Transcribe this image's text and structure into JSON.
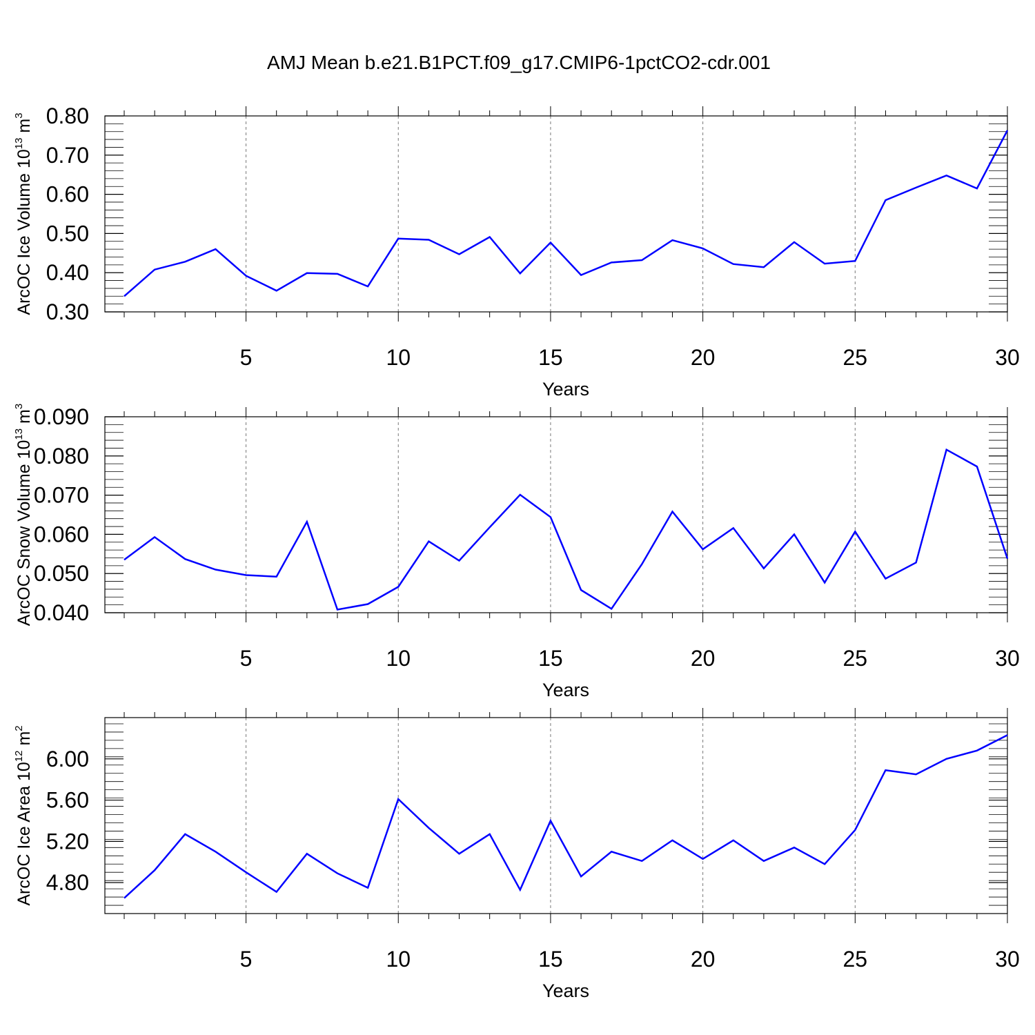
{
  "title": "AMJ Mean b.e21.B1PCT.f09_g17.CMIP6-1pctCO2-cdr.001",
  "chart_data": [
    {
      "type": "line",
      "xlabel": "Years",
      "ylabel": {
        "main": "ArcOC Ice Volume 10",
        "sup": "13",
        "unit": " m",
        "unit_sup": "3"
      },
      "xlim": [
        1,
        30
      ],
      "ylim": [
        0.3,
        0.8
      ],
      "xticks": [
        5,
        10,
        15,
        20,
        25,
        30
      ],
      "yticks": [
        0.3,
        0.4,
        0.5,
        0.6,
        0.7,
        0.8
      ],
      "ytick_labels": [
        "0.30",
        "0.40",
        "0.50",
        "0.60",
        "0.70",
        "0.80"
      ],
      "y_minor_step": 0.02,
      "grid": "vertical dashed at major x ticks",
      "color": "#0000ff",
      "x": [
        1,
        2,
        3,
        4,
        5,
        6,
        7,
        8,
        9,
        10,
        11,
        12,
        13,
        14,
        15,
        16,
        17,
        18,
        19,
        20,
        21,
        22,
        23,
        24,
        25,
        26,
        27,
        28,
        29,
        30
      ],
      "values": [
        0.34,
        0.408,
        0.428,
        0.46,
        0.392,
        0.354,
        0.399,
        0.397,
        0.365,
        0.487,
        0.484,
        0.447,
        0.491,
        0.398,
        0.477,
        0.394,
        0.426,
        0.432,
        0.483,
        0.462,
        0.422,
        0.414,
        0.478,
        0.423,
        0.43,
        0.585,
        0.617,
        0.648,
        0.615,
        0.763
      ]
    },
    {
      "type": "line",
      "xlabel": "Years",
      "ylabel": {
        "main": "ArcOC Snow Volume 10",
        "sup": "13",
        "unit": " m",
        "unit_sup": "3"
      },
      "xlim": [
        1,
        30
      ],
      "ylim": [
        0.04,
        0.09
      ],
      "xticks": [
        5,
        10,
        15,
        20,
        25,
        30
      ],
      "yticks": [
        0.04,
        0.05,
        0.06,
        0.07,
        0.08,
        0.09
      ],
      "ytick_labels": [
        "0.040",
        "0.050",
        "0.060",
        "0.070",
        "0.080",
        "0.090"
      ],
      "y_minor_step": 0.002,
      "grid": "vertical dashed at major x ticks",
      "color": "#0000ff",
      "x": [
        1,
        2,
        3,
        4,
        5,
        6,
        7,
        8,
        9,
        10,
        11,
        12,
        13,
        14,
        15,
        16,
        17,
        18,
        19,
        20,
        21,
        22,
        23,
        24,
        25,
        26,
        27,
        28,
        29,
        30
      ],
      "values": [
        0.0535,
        0.0593,
        0.0537,
        0.051,
        0.0496,
        0.0492,
        0.0632,
        0.0408,
        0.0422,
        0.0466,
        0.0582,
        0.0533,
        0.0618,
        0.0701,
        0.0644,
        0.0458,
        0.041,
        0.0524,
        0.0658,
        0.0562,
        0.0616,
        0.0513,
        0.06,
        0.0477,
        0.0607,
        0.0487,
        0.0528,
        0.0816,
        0.0773,
        0.0538
      ]
    },
    {
      "type": "line",
      "xlabel": "Years",
      "ylabel": {
        "main": "ArcOC Ice Area 10",
        "sup": "12",
        "unit": " m",
        "unit_sup": "2"
      },
      "xlim": [
        1,
        30
      ],
      "ylim": [
        4.5,
        6.4
      ],
      "xticks": [
        5,
        10,
        15,
        20,
        25,
        30
      ],
      "yticks": [
        4.8,
        5.2,
        5.6,
        6.0
      ],
      "ytick_labels": [
        "4.80",
        "5.20",
        "5.60",
        "6.00"
      ],
      "y_minor_step": 0.08,
      "grid": "vertical dashed at major x ticks",
      "color": "#0000ff",
      "x": [
        1,
        2,
        3,
        4,
        5,
        6,
        7,
        8,
        9,
        10,
        11,
        12,
        13,
        14,
        15,
        16,
        17,
        18,
        19,
        20,
        21,
        22,
        23,
        24,
        25,
        26,
        27,
        28,
        29,
        30
      ],
      "values": [
        4.65,
        4.92,
        5.27,
        5.1,
        4.9,
        4.71,
        5.08,
        4.89,
        4.75,
        5.61,
        5.33,
        5.08,
        5.27,
        4.73,
        5.4,
        4.86,
        5.1,
        5.01,
        5.21,
        5.03,
        5.21,
        5.01,
        5.14,
        4.98,
        5.31,
        5.89,
        5.85,
        6.0,
        6.08,
        6.23
      ]
    }
  ]
}
